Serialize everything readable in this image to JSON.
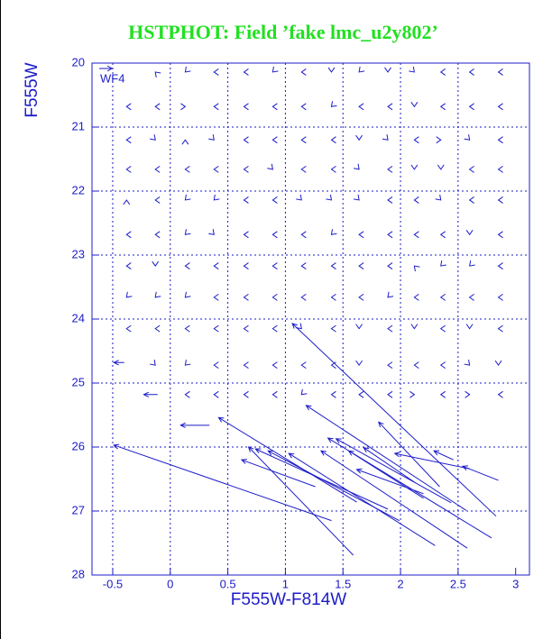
{
  "chart_data": {
    "type": "quiver",
    "title": "HSTPHOT: Field ’fake lmc_u2y802’",
    "x_label": "F555W-F814W",
    "y_label": "F555W",
    "annotation": "WF4",
    "color": "#1c1cc8",
    "title_color": "#22e022",
    "grid": true,
    "xlim": [
      -0.68,
      3.12
    ],
    "ylim": [
      28,
      20
    ],
    "xticks": [
      -0.5,
      0,
      0.5,
      1,
      1.5,
      2,
      2.5,
      3
    ],
    "yticks": [
      20,
      21,
      22,
      23,
      24,
      25,
      26,
      27,
      28
    ],
    "xgrid": [
      -0.5,
      0,
      0.5,
      1,
      1.5,
      2,
      2.5
    ],
    "ygrid": [
      21,
      22,
      23,
      24,
      25,
      26,
      27
    ],
    "arrows": {
      "x": [
        1.06,
        -0.49,
        -0.23,
        -0.49,
        0.09,
        0.42,
        0.68,
        0.62,
        0.74,
        0.85,
        1.18,
        1.03,
        1.31,
        1.37,
        1.44,
        1.55,
        1.62,
        1.68,
        1.81,
        1.95,
        2.29,
        2.54
      ],
      "y": [
        24.07,
        25.97,
        25.18,
        24.68,
        25.66,
        25.54,
        26.0,
        26.2,
        26.03,
        26.06,
        25.35,
        26.1,
        26.06,
        25.86,
        25.87,
        26.06,
        26.35,
        26.01,
        25.61,
        26.1,
        26.06,
        26.3
      ],
      "x_end": [
        2.83,
        1.4,
        -0.11,
        -0.4,
        0.34,
        1.62,
        1.59,
        1.26,
        1.89,
        1.99,
        2.57,
        2.3,
        2.58,
        2.79,
        2.44,
        2.2,
        2.2,
        2.13,
        2.34,
        2.6,
        2.46,
        2.85
      ],
      "y_end": [
        27.08,
        27.15,
        25.18,
        24.68,
        25.66,
        26.86,
        27.69,
        26.62,
        26.97,
        27.15,
        26.99,
        27.54,
        27.58,
        27.42,
        26.87,
        26.8,
        26.73,
        26.56,
        26.62,
        26.34,
        26.2,
        26.52
      ]
    },
    "heads": {
      "x": [
        -0.13,
        0.13,
        0.38,
        0.64,
        0.89,
        1.14,
        1.4,
        1.64,
        1.89,
        2.12,
        2.35,
        2.6,
        2.85,
        -0.38,
        -0.13,
        0.13,
        0.38,
        0.64,
        0.89,
        1.14,
        1.4,
        1.64,
        1.89,
        2.12,
        2.35,
        2.6,
        2.85,
        -0.38,
        -0.13,
        0.13,
        0.38,
        0.64,
        0.89,
        1.14,
        1.4,
        1.64,
        1.89,
        2.12,
        2.35,
        2.6,
        2.85,
        -0.38,
        -0.13,
        0.13,
        0.38,
        0.64,
        0.89,
        1.14,
        1.4,
        1.64,
        1.89,
        2.12,
        2.35,
        2.6,
        2.85,
        -0.38,
        -0.13,
        0.13,
        0.38,
        0.64,
        0.89,
        1.14,
        1.4,
        1.64,
        1.89,
        2.12,
        2.35,
        2.6,
        2.85,
        -0.38,
        -0.13,
        0.13,
        0.38,
        0.64,
        0.89,
        1.14,
        1.4,
        1.64,
        1.89,
        2.12,
        2.35,
        2.6,
        2.85,
        -0.38,
        -0.13,
        0.13,
        0.38,
        0.64,
        0.89,
        1.14,
        1.4,
        1.64,
        1.89,
        2.12,
        2.35,
        2.6,
        2.85,
        -0.38,
        -0.13,
        0.13,
        0.38,
        0.64,
        0.89,
        1.14,
        1.4,
        1.64,
        1.89,
        2.12,
        2.35,
        2.6,
        2.85,
        -0.38,
        -0.13,
        0.13,
        0.38,
        0.64,
        0.89,
        1.14,
        1.4,
        1.64,
        1.89,
        2.12,
        2.35,
        2.6,
        2.85,
        -0.13,
        0.13,
        0.38,
        0.64,
        0.89,
        1.14,
        1.4,
        1.64,
        1.89,
        2.12,
        2.35,
        2.6,
        2.85,
        0.13,
        0.38,
        0.64,
        0.89,
        1.14,
        1.4,
        1.64,
        1.89,
        2.12,
        2.35,
        2.6,
        2.85
      ],
      "y": [
        20.14,
        20.14,
        20.14,
        20.14,
        20.14,
        20.14,
        20.14,
        20.14,
        20.14,
        20.14,
        20.14,
        20.14,
        20.14,
        20.68,
        20.68,
        20.68,
        20.68,
        20.68,
        20.68,
        20.68,
        20.68,
        20.68,
        20.68,
        20.68,
        20.68,
        20.68,
        20.68,
        21.2,
        21.2,
        21.2,
        21.2,
        21.2,
        21.2,
        21.2,
        21.2,
        21.2,
        21.2,
        21.2,
        21.2,
        21.2,
        21.2,
        21.66,
        21.66,
        21.66,
        21.66,
        21.66,
        21.66,
        21.66,
        21.66,
        21.66,
        21.66,
        21.66,
        21.66,
        21.66,
        21.66,
        22.14,
        22.14,
        22.14,
        22.14,
        22.14,
        22.14,
        22.14,
        22.14,
        22.14,
        22.14,
        22.14,
        22.14,
        22.14,
        22.14,
        22.68,
        22.68,
        22.68,
        22.68,
        22.68,
        22.68,
        22.68,
        22.68,
        22.68,
        22.68,
        22.68,
        22.68,
        22.68,
        22.68,
        23.17,
        23.17,
        23.17,
        23.17,
        23.17,
        23.17,
        23.17,
        23.17,
        23.17,
        23.17,
        23.17,
        23.17,
        23.17,
        23.17,
        23.66,
        23.66,
        23.66,
        23.66,
        23.66,
        23.66,
        23.66,
        23.66,
        23.66,
        23.66,
        23.66,
        23.66,
        23.66,
        23.66,
        24.15,
        24.15,
        24.15,
        24.15,
        24.15,
        24.15,
        24.15,
        24.15,
        24.15,
        24.15,
        24.15,
        24.15,
        24.15,
        24.15,
        24.72,
        24.72,
        24.72,
        24.72,
        24.72,
        24.72,
        24.72,
        24.72,
        24.72,
        24.72,
        24.72,
        24.72,
        24.72,
        25.18,
        25.18,
        25.18,
        25.18,
        25.18,
        25.18,
        25.18,
        25.18,
        25.18,
        25.18,
        25.18,
        25.18
      ],
      "angle": [
        225,
        135,
        180,
        180,
        135,
        180,
        90,
        135,
        90,
        45,
        180,
        180,
        180,
        180,
        180,
        0,
        180,
        180,
        180,
        180,
        135,
        180,
        180,
        90,
        180,
        180,
        180,
        180,
        45,
        270,
        45,
        180,
        180,
        180,
        180,
        90,
        45,
        180,
        0,
        45,
        180,
        180,
        180,
        180,
        180,
        180,
        45,
        180,
        180,
        45,
        180,
        90,
        90,
        180,
        180,
        270,
        180,
        135,
        135,
        180,
        180,
        45,
        45,
        45,
        180,
        180,
        45,
        180,
        180,
        180,
        180,
        135,
        45,
        180,
        180,
        180,
        135,
        180,
        180,
        180,
        180,
        90,
        180,
        180,
        90,
        180,
        180,
        180,
        180,
        180,
        180,
        180,
        180,
        225,
        135,
        135,
        180,
        135,
        135,
        135,
        180,
        180,
        180,
        180,
        180,
        180,
        135,
        180,
        180,
        180,
        180,
        180,
        180,
        180,
        180,
        180,
        180,
        45,
        180,
        90,
        180,
        90,
        180,
        90,
        180,
        45,
        135,
        180,
        180,
        180,
        180,
        180,
        90,
        180,
        180,
        180,
        45,
        90,
        180,
        180,
        180,
        180,
        135,
        180,
        180,
        180,
        0,
        180,
        0,
        180
      ]
    }
  }
}
